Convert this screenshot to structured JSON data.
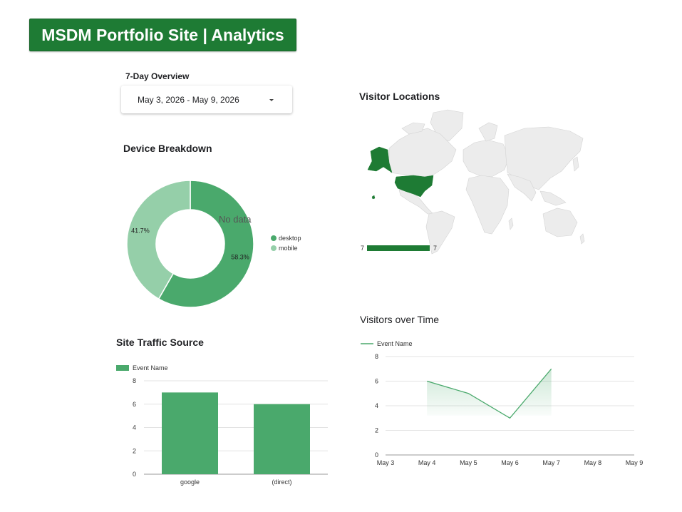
{
  "header": {
    "title": "MSDM Portfolio Site | Analytics"
  },
  "overview": {
    "label": "7-Day Overview",
    "date_range": "May 3, 2026 - May 9, 2026"
  },
  "colors": {
    "brand_green": "#1e7b34",
    "bar_green": "#4aa96c",
    "donut_desktop": "#4aa96c",
    "donut_mobile": "#95cfa9",
    "map_highlight": "#1e7b34",
    "map_land": "#ececec"
  },
  "map": {
    "title": "Visitor Locations",
    "scale_min_label": "7",
    "scale_max_label": "7",
    "highlighted_countries": [
      "USA"
    ]
  },
  "chart_data": [
    {
      "type": "pie",
      "title": "Device Breakdown",
      "variant": "donut",
      "slices": [
        {
          "label": "desktop",
          "value": 58.3,
          "value_label": "58.3%"
        },
        {
          "label": "mobile",
          "value": 41.7,
          "value_label": "41.7%"
        }
      ],
      "overlay_text": "No data",
      "legend_position": "right"
    },
    {
      "type": "bar",
      "title": "Site Traffic Source",
      "categories": [
        "google",
        "(direct)"
      ],
      "series": [
        {
          "name": "Event Name",
          "values": [
            7,
            6
          ]
        }
      ],
      "ylim": [
        0,
        8
      ],
      "yticks": [
        0,
        2,
        4,
        6,
        8
      ],
      "grid": true,
      "legend_position": "top-left"
    },
    {
      "type": "line",
      "title": "Visitors over Time",
      "x": [
        "May 3",
        "May 4",
        "May 5",
        "May 6",
        "May 7",
        "May 8",
        "May 9"
      ],
      "series": [
        {
          "name": "Event Name",
          "values": [
            null,
            6,
            5,
            3,
            7,
            null,
            null
          ]
        }
      ],
      "ylim": [
        0,
        8
      ],
      "yticks": [
        0,
        2,
        4,
        6,
        8
      ],
      "grid": true,
      "legend_position": "top-left"
    }
  ]
}
